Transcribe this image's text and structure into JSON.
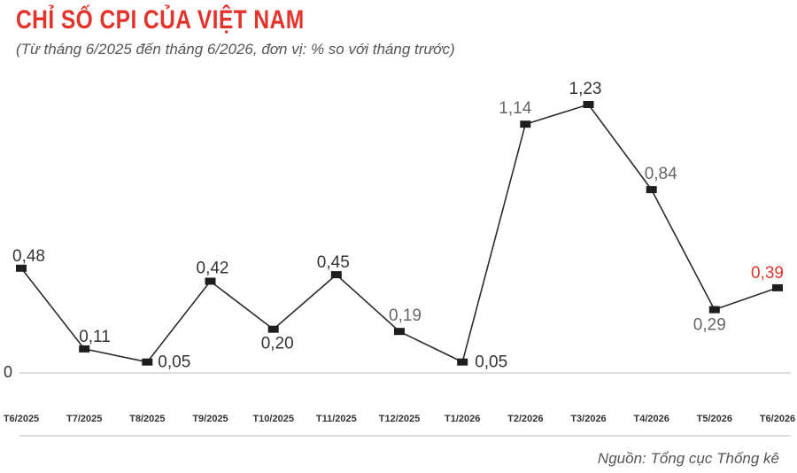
{
  "header": {
    "title": "CHỈ SỐ CPI CỦA VIỆT NAM",
    "subtitle": "(Từ tháng 6/2025 đến tháng 6/2026, đơn vị: % so với tháng trước)"
  },
  "footer": {
    "source": "Nguồn: Tổng cục Thống kê"
  },
  "chart_data": {
    "type": "line",
    "title": "CHỈ SỐ CPI CỦA VIỆT NAM",
    "subtitle": "(Từ tháng 6/2025 đến tháng 6/2026, đơn vị: % so với tháng trước)",
    "categories": [
      "T6/2025",
      "T7/2025",
      "T8/2025",
      "T9/2025",
      "T10/2025",
      "T11/2025",
      "T12/2025",
      "T1/2026",
      "T2/2026",
      "T3/2026",
      "T4/2026",
      "T5/2026",
      "T6/2026"
    ],
    "series": [
      {
        "values": [
          0.48,
          0.11,
          0.05,
          0.42,
          0.2,
          0.45,
          0.19,
          0.05,
          1.14,
          1.23,
          0.84,
          0.29,
          0.39
        ],
        "labels": [
          "0,48",
          "0,11",
          "0,05",
          "0,42",
          "0,20",
          "0,45",
          "0,19",
          "0,05",
          "1,14",
          "1,23",
          "0,84",
          "0,29",
          "0,39"
        ]
      }
    ],
    "y_zero_label": "0",
    "ylim": [
      0,
      1.23
    ],
    "grid": false,
    "legend": "none",
    "colors": {
      "line": "#2b2b2b",
      "label_dark": "#333333",
      "label_muted": "#666666",
      "label_highlight": "#e2342d",
      "baseline": "#bbbbbb"
    }
  }
}
